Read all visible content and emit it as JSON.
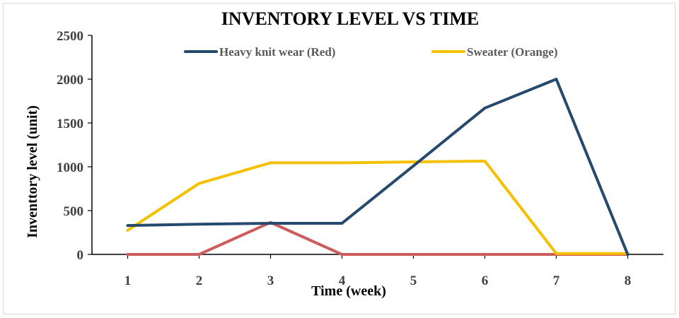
{
  "chart_data": {
    "type": "line",
    "title": "INVENTORY LEVEL VS TIME",
    "xlabel": "Time (week)",
    "ylabel": "Inventtory  level (unit)",
    "x": [
      1,
      2,
      3,
      4,
      5,
      6,
      7,
      8
    ],
    "ylim": [
      0,
      2500
    ],
    "yticks": [
      0,
      500,
      1000,
      1500,
      2000,
      2500
    ],
    "grid": false,
    "legend": "top",
    "series": [
      {
        "name": "Heavy knit wear (Red)",
        "color": "#264a6e",
        "values": [
          330,
          345,
          355,
          355,
          1010,
          1670,
          2000,
          0
        ]
      },
      {
        "name": "Sweater (Orange)",
        "color": "#f5c000",
        "values": [
          275,
          810,
          1045,
          1045,
          1055,
          1065,
          10,
          10
        ]
      },
      {
        "name": "",
        "color": "#cd5c5c",
        "values": [
          0,
          0,
          365,
          0,
          0,
          0,
          0,
          0
        ]
      }
    ]
  }
}
